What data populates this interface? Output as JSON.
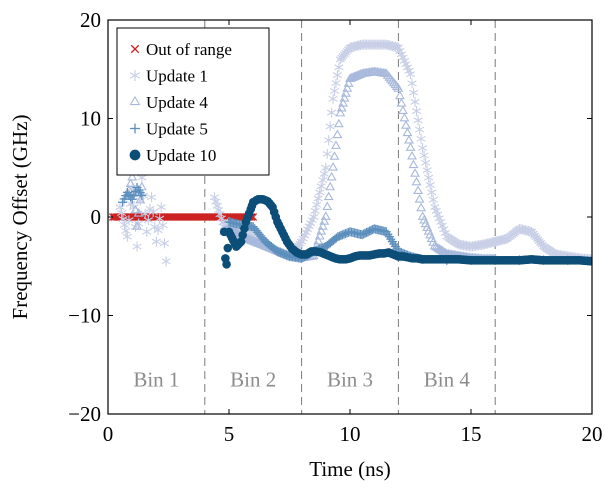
{
  "chart_data": {
    "type": "scatter",
    "title": "",
    "xlabel": "Time (ns)",
    "ylabel": "Frequency Offset (GHz)",
    "xlim": [
      0,
      20
    ],
    "ylim": [
      -20,
      20
    ],
    "xticks": [
      0,
      5,
      10,
      15,
      20
    ],
    "yticks": [
      -20,
      -10,
      0,
      10,
      20
    ],
    "xtick_labels": [
      "0",
      "5",
      "10",
      "15",
      "20"
    ],
    "ytick_labels": [
      "−20",
      "−10",
      "0",
      "10",
      "20"
    ],
    "grid": false,
    "legend_position": "top-left",
    "bin_boundaries": [
      4,
      8,
      12,
      16
    ],
    "bins": [
      {
        "label": "Bin 1",
        "x_center": 2,
        "y": -16.5
      },
      {
        "label": "Bin 2",
        "x_center": 6,
        "y": -16.5
      },
      {
        "label": "Bin 3",
        "x_center": 10,
        "y": -16.5
      },
      {
        "label": "Bin 4",
        "x_center": 14,
        "y": -16.5
      }
    ],
    "series": [
      {
        "name": "Out of range",
        "marker": "x",
        "color": "#cc2222",
        "x": [
          0.2,
          0.4,
          0.6,
          0.8,
          1.0,
          1.2,
          1.4,
          1.6,
          1.8,
          2.0,
          2.2,
          2.4,
          2.6,
          2.8,
          3.0,
          3.2,
          3.4,
          3.6,
          3.8,
          4.0,
          4.2,
          4.4,
          4.6,
          4.8,
          5.0,
          5.2,
          5.4,
          5.6,
          5.8,
          6.0
        ],
        "y": [
          0,
          0,
          0,
          0,
          0,
          0,
          0,
          0,
          0,
          0,
          0,
          0,
          0,
          0,
          0,
          0,
          0,
          0,
          0,
          0,
          0,
          0,
          0,
          0,
          0,
          0,
          0,
          0,
          0,
          0
        ]
      },
      {
        "name": "Update 1",
        "marker": "star",
        "color": "#c8cfe6",
        "x": [
          0.5,
          0.8,
          1.0,
          1.2,
          1.4,
          1.6,
          1.8,
          2.0,
          2.2,
          2.4,
          4.4,
          4.8,
          5.0,
          5.5,
          6.0,
          6.5,
          7.0,
          7.5,
          8.0,
          8.5,
          9.0,
          9.3,
          9.6,
          10.0,
          10.5,
          11.0,
          11.5,
          12.0,
          12.5,
          13.0,
          13.5,
          14.0,
          14.5,
          15.0,
          15.5,
          16.0,
          16.5,
          17.0,
          17.5,
          18.0,
          18.5,
          19.0,
          19.5,
          20.0
        ],
        "y": [
          1.0,
          -2.0,
          3.0,
          -3.0,
          4.0,
          -1.5,
          2.0,
          -2.5,
          1.0,
          -4.5,
          2.0,
          -1.0,
          -0.5,
          -1.5,
          -2.0,
          -2.8,
          -3.5,
          -4.0,
          -2.5,
          0.0,
          5.0,
          12.0,
          16.0,
          17.2,
          17.5,
          17.5,
          17.5,
          17.2,
          14.5,
          7.0,
          1.0,
          -2.0,
          -2.8,
          -3.0,
          -2.8,
          -2.5,
          -2.2,
          -1.2,
          -1.5,
          -3.0,
          -3.8,
          -4.0,
          -4.2,
          -4.3
        ]
      },
      {
        "name": "Update 4",
        "marker": "triangle",
        "color": "#a8b9db",
        "x": [
          0.8,
          1.0,
          1.2,
          1.4,
          4.8,
          5.0,
          5.5,
          6.0,
          6.5,
          7.0,
          7.5,
          8.0,
          8.5,
          9.0,
          9.3,
          9.6,
          10.0,
          10.5,
          11.0,
          11.5,
          12.0,
          12.5,
          13.0,
          13.5,
          14.0,
          14.5,
          15.0,
          15.5,
          16.0,
          17.0,
          18.0,
          19.0,
          20.0
        ],
        "y": [
          2.0,
          4.0,
          -1.0,
          3.0,
          -1.5,
          -1.2,
          -2.0,
          -2.5,
          -3.0,
          -3.5,
          -4.0,
          -4.2,
          -4.0,
          0.0,
          5.0,
          10.5,
          14.0,
          14.5,
          14.7,
          14.5,
          13.0,
          7.0,
          0.0,
          -3.0,
          -3.8,
          -4.0,
          -4.2,
          -4.3,
          -4.3,
          -4.4,
          -4.4,
          -4.4,
          -4.4
        ]
      },
      {
        "name": "Update 5",
        "marker": "plus",
        "color": "#5d8fbd",
        "x": [
          0.6,
          0.8,
          1.0,
          1.2,
          1.4,
          5.0,
          5.5,
          6.0,
          6.5,
          7.0,
          7.5,
          8.0,
          8.5,
          9.0,
          9.5,
          10.0,
          10.5,
          11.0,
          11.5,
          12.0,
          12.5,
          13.0,
          14.0,
          15.0,
          16.0,
          17.0,
          18.0,
          19.0,
          20.0
        ],
        "y": [
          1.5,
          2.5,
          1.8,
          3.0,
          2.2,
          -0.5,
          -0.8,
          -1.0,
          -2.5,
          -3.5,
          -4.0,
          -4.2,
          -3.5,
          -3.0,
          -2.0,
          -1.5,
          -1.8,
          -1.2,
          -1.5,
          -3.5,
          -4.0,
          -4.3,
          -4.4,
          -4.4,
          -4.4,
          -4.4,
          -4.4,
          -4.4,
          -4.4
        ]
      },
      {
        "name": "Update 10",
        "marker": "circle",
        "color": "#0d4e78",
        "x": [
          4.8,
          4.85,
          4.9,
          5.0,
          5.3,
          5.5,
          5.7,
          5.9,
          6.0,
          6.2,
          6.4,
          6.6,
          6.8,
          7.0,
          7.2,
          7.4,
          7.6,
          7.8,
          8.0,
          8.2,
          8.4,
          8.6,
          8.8,
          9.0,
          9.2,
          9.4,
          9.6,
          9.8,
          10.0,
          10.2,
          10.4,
          10.6,
          10.8,
          11.0,
          11.2,
          11.4,
          11.6,
          11.8,
          12.0,
          12.2,
          12.4,
          12.6,
          12.8,
          13.0,
          13.5,
          14.0,
          14.5,
          15.0,
          15.5,
          16.0,
          16.5,
          17.0,
          17.5,
          18.0,
          18.5,
          19.0,
          19.5,
          20.0
        ],
        "y": [
          -1.5,
          -4.2,
          -4.8,
          -1.5,
          -3.0,
          -2.5,
          -0.5,
          0.8,
          1.5,
          1.8,
          1.8,
          1.6,
          1.0,
          -0.5,
          -1.5,
          -2.5,
          -3.2,
          -3.6,
          -3.8,
          -3.8,
          -3.5,
          -3.5,
          -3.6,
          -3.8,
          -4.0,
          -4.2,
          -4.3,
          -4.3,
          -4.2,
          -4.0,
          -3.9,
          -3.9,
          -3.9,
          -3.8,
          -3.7,
          -3.7,
          -3.6,
          -3.8,
          -4.0,
          -4.0,
          -4.1,
          -4.2,
          -4.2,
          -4.3,
          -4.3,
          -4.3,
          -4.3,
          -4.4,
          -4.4,
          -4.4,
          -4.4,
          -4.4,
          -4.3,
          -4.4,
          -4.4,
          -4.4,
          -4.4,
          -4.5
        ]
      }
    ]
  }
}
